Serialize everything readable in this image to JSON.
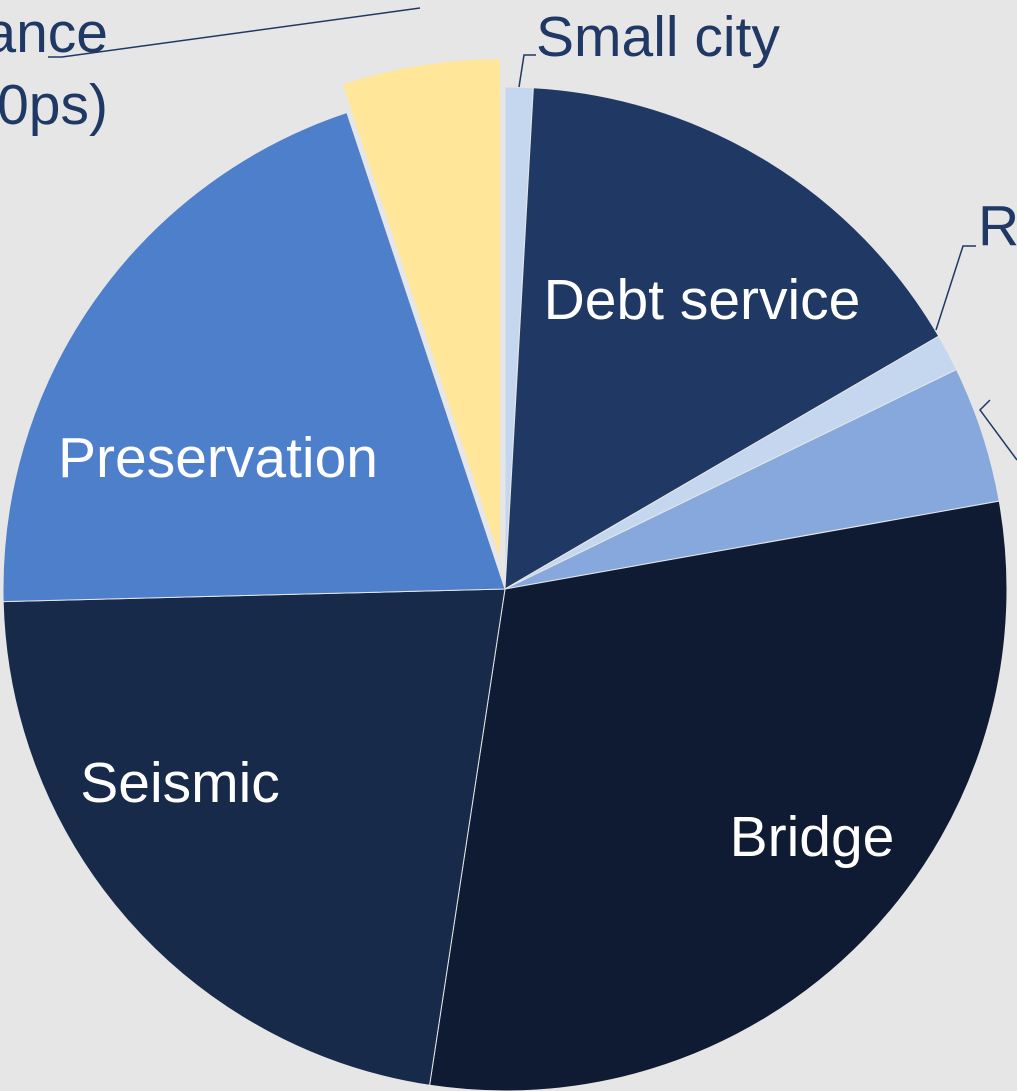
{
  "chart_data": {
    "type": "pie",
    "start_angle_deg": 0,
    "direction": "clockwise",
    "slices": [
      {
        "label": "Small city",
        "value": 0.9,
        "color": "#c5d6ef",
        "label_color": "#1f3864",
        "label_position": "outside",
        "exploded": false
      },
      {
        "label": "Debt service",
        "value": 15.7,
        "color": "#1f3864",
        "label_color": "#ffffff",
        "label_position": "inside",
        "exploded": false
      },
      {
        "label": "R",
        "value": 1.2,
        "color": "#c5d6ef",
        "label_color": "#1f3864",
        "label_position": "outside",
        "exploded": false
      },
      {
        "label": "",
        "value": 4.4,
        "color": "#86a8dc",
        "label_color": "#1f3864",
        "label_position": "outside",
        "exploded": false
      },
      {
        "label": "Bridge",
        "value": 30.2,
        "color": "#0f1a33",
        "label_color": "#ffffff",
        "label_position": "inside",
        "exploded": false
      },
      {
        "label": "Seismic",
        "value": 22.2,
        "color": "#172a4a",
        "label_color": "#ffffff",
        "label_position": "inside",
        "exploded": false
      },
      {
        "label": "Preservation",
        "value": 20.3,
        "color": "#4e7fcb",
        "label_color": "#ffffff",
        "label_position": "inside",
        "exploded": false
      },
      {
        "label": "ance\n0ps)",
        "value": 5.1,
        "color": "#ffe699",
        "label_color": "#1f3864",
        "label_position": "outside",
        "exploded": true
      }
    ]
  }
}
